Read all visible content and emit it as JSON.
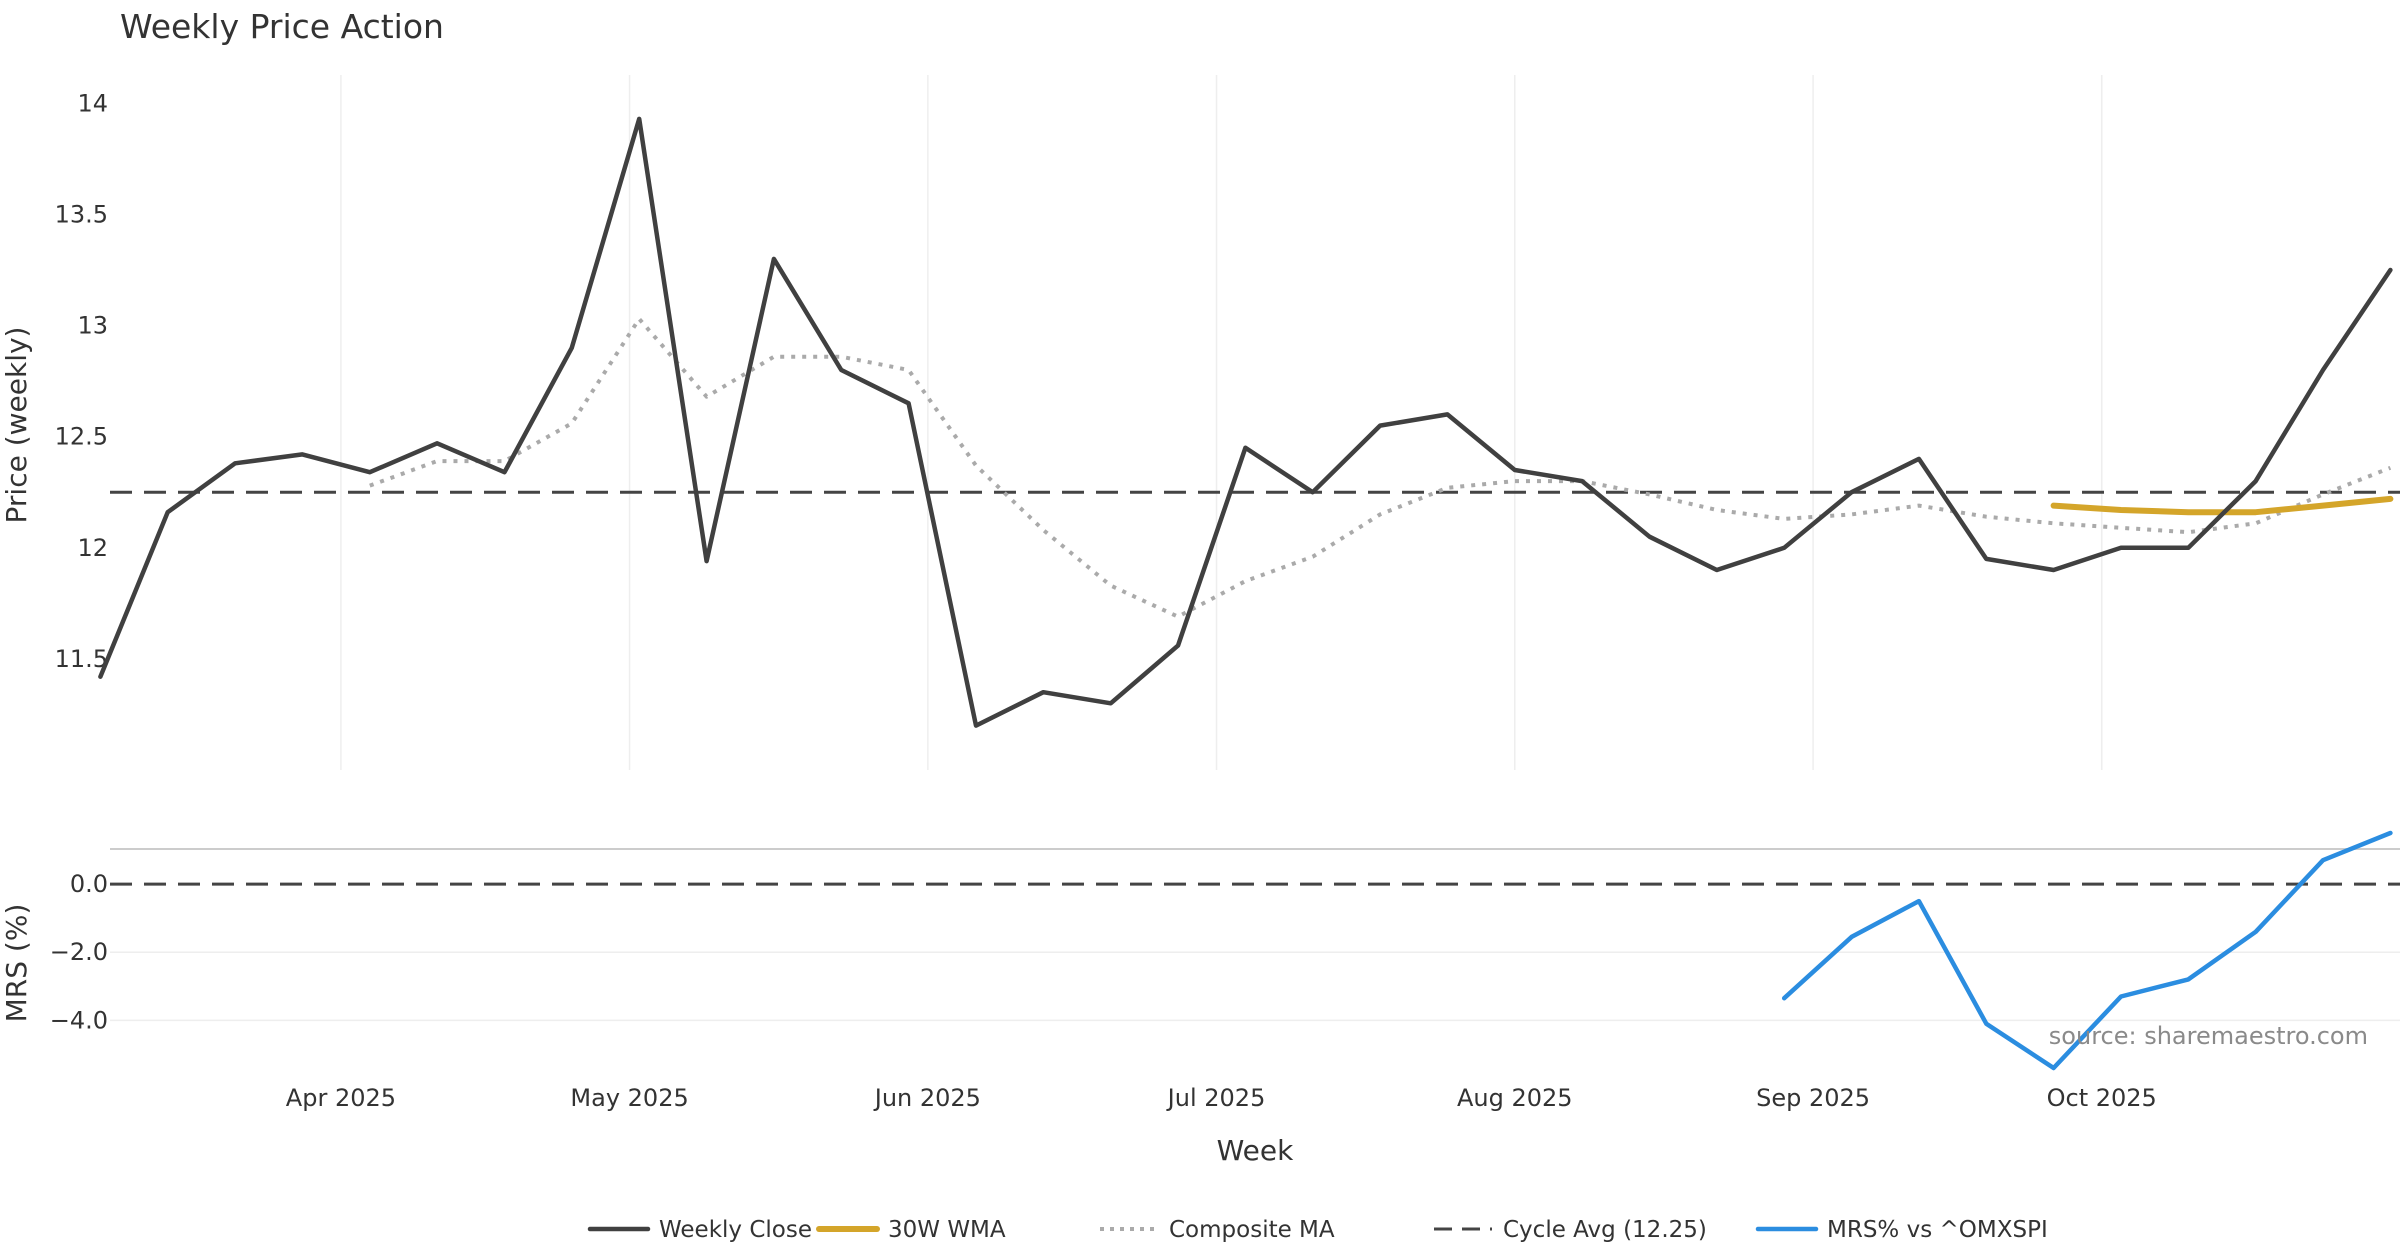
{
  "chart_data": {
    "title": "Weekly Price Action",
    "xlabel": "Week",
    "watermark": "source: sharemaestro.com",
    "x_ticks": [
      "Apr 2025",
      "May 2025",
      "Jun 2025",
      "Jul 2025",
      "Aug 2025",
      "Sep 2025",
      "Oct 2025"
    ],
    "price_panel": {
      "type": "line",
      "ylabel": "Price (weekly)",
      "ylim": [
        11.0,
        14.15
      ],
      "y_ticks": [
        11.5,
        12,
        12.5,
        13,
        13.5,
        14
      ],
      "y_tick_labels": [
        "11.5",
        "12",
        "12.5",
        "13",
        "13.5",
        "14"
      ],
      "weeks": [
        "2025-03-07",
        "2025-03-14",
        "2025-03-21",
        "2025-03-28",
        "2025-04-04",
        "2025-04-11",
        "2025-04-18",
        "2025-04-25",
        "2025-05-02",
        "2025-05-09",
        "2025-05-16",
        "2025-05-23",
        "2025-05-30",
        "2025-06-06",
        "2025-06-13",
        "2025-06-20",
        "2025-06-27",
        "2025-07-04",
        "2025-07-11",
        "2025-07-18",
        "2025-07-25",
        "2025-08-01",
        "2025-08-08",
        "2025-08-15",
        "2025-08-22",
        "2025-08-29",
        "2025-09-05",
        "2025-09-12",
        "2025-09-19",
        "2025-09-26",
        "2025-10-03",
        "2025-10-10",
        "2025-10-17",
        "2025-10-24",
        "2025-10-31"
      ],
      "series": [
        {
          "name": "Weekly Close",
          "color": "#404040",
          "style": "solid",
          "values": [
            11.42,
            12.16,
            12.38,
            12.42,
            12.34,
            12.47,
            12.34,
            12.9,
            13.93,
            11.94,
            13.3,
            12.8,
            12.65,
            11.2,
            11.35,
            11.3,
            11.56,
            12.45,
            12.25,
            12.55,
            12.6,
            12.35,
            12.3,
            12.05,
            11.9,
            12.0,
            12.25,
            12.4,
            11.95,
            11.9,
            12.0,
            12.0,
            12.3,
            12.8,
            13.25
          ]
        },
        {
          "name": "30W WMA",
          "color": "#d4a52a",
          "style": "solid-thick",
          "values": [
            null,
            null,
            null,
            null,
            null,
            null,
            null,
            null,
            null,
            null,
            null,
            null,
            null,
            null,
            null,
            null,
            null,
            null,
            null,
            null,
            null,
            null,
            null,
            null,
            null,
            null,
            null,
            null,
            null,
            12.19,
            12.17,
            12.16,
            12.16,
            12.19,
            12.22
          ]
        },
        {
          "name": "Composite MA",
          "color": "#aaaaaa",
          "style": "dotted",
          "values": [
            null,
            null,
            null,
            null,
            12.28,
            12.39,
            12.39,
            12.56,
            13.03,
            12.68,
            12.86,
            12.86,
            12.8,
            12.37,
            12.08,
            11.83,
            11.69,
            11.85,
            11.96,
            12.15,
            12.27,
            12.3,
            12.3,
            12.24,
            12.17,
            12.13,
            12.15,
            12.19,
            12.14,
            12.11,
            12.09,
            12.07,
            12.11,
            12.24,
            12.36
          ]
        }
      ],
      "reference_line": {
        "name": "Cycle Avg (12.25)",
        "value": 12.25,
        "color": "#444444",
        "style": "dashed"
      }
    },
    "mrs_panel": {
      "type": "line",
      "ylabel": "MRS (%)",
      "ylim": [
        -5.4,
        1.0
      ],
      "y_ticks": [
        0.0,
        -2.0,
        -4.0
      ],
      "y_tick_labels": [
        "0.0",
        "−2.0",
        "−4.0"
      ],
      "series": [
        {
          "name": "MRS% vs ^OMXSPI",
          "color": "#2b8de0",
          "style": "solid",
          "values": [
            null,
            null,
            null,
            null,
            null,
            null,
            null,
            null,
            null,
            null,
            null,
            null,
            null,
            null,
            null,
            null,
            null,
            null,
            null,
            null,
            null,
            null,
            null,
            null,
            null,
            -3.35,
            -1.55,
            -0.5,
            -4.1,
            -5.4,
            -3.3,
            -2.8,
            -1.4,
            0.7,
            1.5
          ]
        }
      ],
      "reference_line": {
        "value": 0.0,
        "color": "#444444",
        "style": "dashed"
      }
    },
    "legend": {
      "placement": "bottom-center",
      "items": [
        {
          "label": "Weekly Close",
          "color": "#404040",
          "style": "solid"
        },
        {
          "label": "30W WMA",
          "color": "#d4a52a",
          "style": "solid-thick"
        },
        {
          "label": "Composite MA",
          "color": "#aaaaaa",
          "style": "dotted"
        },
        {
          "label": "Cycle Avg (12.25)",
          "color": "#444444",
          "style": "dashed"
        },
        {
          "label": "MRS% vs ^OMXSPI",
          "color": "#2b8de0",
          "style": "solid"
        }
      ]
    }
  }
}
